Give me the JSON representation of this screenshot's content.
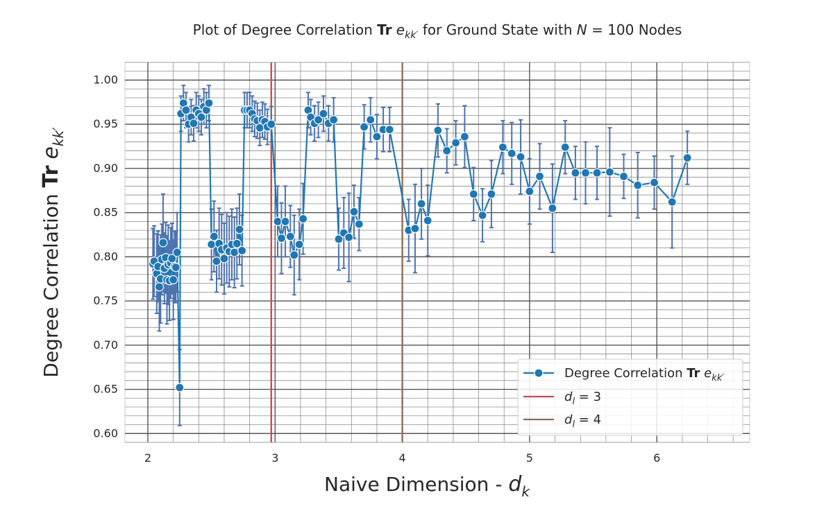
{
  "chart_data": {
    "type": "line",
    "title_parts": {
      "prefix": "Plot of Degree Correlation ",
      "bold": "Tr",
      "symbol": "e",
      "sub": "kk′",
      "mid": " for Ground State with ",
      "n_var": "N",
      "n_eq": " = 100 Nodes"
    },
    "xlabel_parts": {
      "text": "Naive Dimension - ",
      "var": "d",
      "sub": "k"
    },
    "ylabel_parts": {
      "text": "Degree Correlation ",
      "bold": "Tr",
      "var": "e",
      "sub": "kk′"
    },
    "xlim": [
      1.82,
      6.73
    ],
    "ylim": [
      0.59,
      1.02
    ],
    "x_ticks": [
      2,
      3,
      4,
      5,
      6
    ],
    "y_ticks": [
      0.6,
      0.65,
      0.7,
      0.75,
      0.8,
      0.85,
      0.9,
      0.95,
      1.0
    ],
    "x_minor_step": 0.2,
    "y_minor_step": 0.01,
    "grid": true,
    "legend_position": "lower right",
    "colors": {
      "series": "#1f77b4",
      "errorbar": "#4c72b0",
      "vline_3": "#c44e52",
      "vline_4": "#8c6d58"
    },
    "series": [
      {
        "name": "Degree Correlation Tr e_kk′",
        "legend_parts": {
          "text": "Degree Correlation ",
          "bold": "Tr",
          "var": "e",
          "sub": "kk′"
        },
        "points": [
          [
            2.04,
            0.792,
            0.04
          ],
          [
            2.05,
            0.795,
            0.04
          ],
          [
            2.07,
            0.781,
            0.045
          ],
          [
            2.08,
            0.789,
            0.04
          ],
          [
            2.09,
            0.766,
            0.05
          ],
          [
            2.1,
            0.775,
            0.05
          ],
          [
            2.11,
            0.797,
            0.04
          ],
          [
            2.12,
            0.816,
            0.055
          ],
          [
            2.13,
            0.787,
            0.04
          ],
          [
            2.14,
            0.799,
            0.04
          ],
          [
            2.15,
            0.774,
            0.05
          ],
          [
            2.16,
            0.791,
            0.045
          ],
          [
            2.17,
            0.773,
            0.045
          ],
          [
            2.18,
            0.793,
            0.04
          ],
          [
            2.19,
            0.798,
            0.04
          ],
          [
            2.2,
            0.774,
            0.045
          ],
          [
            2.21,
            0.789,
            0.04
          ],
          [
            2.22,
            0.788,
            0.04
          ],
          [
            2.23,
            0.805,
            0.045
          ],
          [
            2.25,
            0.652,
            0.043
          ],
          [
            2.26,
            0.962,
            0.02
          ],
          [
            2.28,
            0.974,
            0.02
          ],
          [
            2.3,
            0.966,
            0.02
          ],
          [
            2.32,
            0.95,
            0.02
          ],
          [
            2.34,
            0.958,
            0.02
          ],
          [
            2.36,
            0.951,
            0.02
          ],
          [
            2.38,
            0.966,
            0.02
          ],
          [
            2.4,
            0.962,
            0.02
          ],
          [
            2.42,
            0.958,
            0.02
          ],
          [
            2.44,
            0.97,
            0.02
          ],
          [
            2.46,
            0.966,
            0.02
          ],
          [
            2.48,
            0.974,
            0.02
          ],
          [
            2.5,
            0.814,
            0.04
          ],
          [
            2.52,
            0.823,
            0.04
          ],
          [
            2.54,
            0.795,
            0.035
          ],
          [
            2.56,
            0.815,
            0.04
          ],
          [
            2.58,
            0.808,
            0.04
          ],
          [
            2.6,
            0.798,
            0.04
          ],
          [
            2.62,
            0.81,
            0.04
          ],
          [
            2.64,
            0.806,
            0.04
          ],
          [
            2.66,
            0.814,
            0.04
          ],
          [
            2.68,
            0.805,
            0.04
          ],
          [
            2.7,
            0.815,
            0.04
          ],
          [
            2.72,
            0.831,
            0.04
          ],
          [
            2.74,
            0.807,
            0.04
          ],
          [
            2.76,
            0.966,
            0.02
          ],
          [
            2.78,
            0.966,
            0.02
          ],
          [
            2.8,
            0.966,
            0.02
          ],
          [
            2.82,
            0.962,
            0.02
          ],
          [
            2.84,
            0.956,
            0.02
          ],
          [
            2.86,
            0.954,
            0.02
          ],
          [
            2.88,
            0.946,
            0.02
          ],
          [
            2.9,
            0.955,
            0.02
          ],
          [
            2.92,
            0.953,
            0.02
          ],
          [
            2.94,
            0.947,
            0.02
          ],
          [
            2.97,
            0.95,
            0.02
          ],
          [
            3.02,
            0.84,
            0.04
          ],
          [
            3.05,
            0.821,
            0.04
          ],
          [
            3.08,
            0.84,
            0.04
          ],
          [
            3.12,
            0.823,
            0.035
          ],
          [
            3.15,
            0.802,
            0.045
          ],
          [
            3.19,
            0.814,
            0.04
          ],
          [
            3.22,
            0.843,
            0.04
          ],
          [
            3.26,
            0.966,
            0.02
          ],
          [
            3.28,
            0.958,
            0.02
          ],
          [
            3.31,
            0.951,
            0.02
          ],
          [
            3.34,
            0.955,
            0.02
          ],
          [
            3.38,
            0.962,
            0.02
          ],
          [
            3.42,
            0.951,
            0.02
          ],
          [
            3.46,
            0.955,
            0.025
          ],
          [
            3.5,
            0.82,
            0.035
          ],
          [
            3.54,
            0.827,
            0.04
          ],
          [
            3.58,
            0.822,
            0.05
          ],
          [
            3.62,
            0.851,
            0.03
          ],
          [
            3.66,
            0.837,
            0.03
          ],
          [
            3.7,
            0.947,
            0.025
          ],
          [
            3.75,
            0.955,
            0.025
          ],
          [
            3.8,
            0.936,
            0.025
          ],
          [
            3.85,
            0.944,
            0.025
          ],
          [
            3.9,
            0.944,
            0.025
          ],
          [
            4.05,
            0.83,
            0.035
          ],
          [
            4.1,
            0.832,
            0.05
          ],
          [
            4.15,
            0.86,
            0.04
          ],
          [
            4.2,
            0.841,
            0.04
          ],
          [
            4.28,
            0.943,
            0.03
          ],
          [
            4.35,
            0.92,
            0.025
          ],
          [
            4.42,
            0.929,
            0.025
          ],
          [
            4.49,
            0.936,
            0.035
          ],
          [
            4.56,
            0.871,
            0.03
          ],
          [
            4.63,
            0.847,
            0.03
          ],
          [
            4.7,
            0.871,
            0.038
          ],
          [
            4.79,
            0.924,
            0.03
          ],
          [
            4.86,
            0.917,
            0.035
          ],
          [
            4.93,
            0.913,
            0.042
          ],
          [
            5.0,
            0.874,
            0.037
          ],
          [
            5.08,
            0.891,
            0.037
          ],
          [
            5.18,
            0.855,
            0.05
          ],
          [
            5.28,
            0.924,
            0.03
          ],
          [
            5.36,
            0.895,
            0.03
          ],
          [
            5.44,
            0.895,
            0.035
          ],
          [
            5.53,
            0.895,
            0.03
          ],
          [
            5.63,
            0.896,
            0.05
          ],
          [
            5.74,
            0.891,
            0.025
          ],
          [
            5.85,
            0.881,
            0.037
          ],
          [
            5.98,
            0.884,
            0.03
          ],
          [
            6.12,
            0.862,
            0.052
          ],
          [
            6.24,
            0.912,
            0.03
          ]
        ]
      }
    ],
    "vlines": [
      {
        "x": 2.97,
        "label_var": "d",
        "label_sub": "l",
        "label_val": " = 3",
        "color_key": "vline_3"
      },
      {
        "x": 4.0,
        "label_var": "d",
        "label_sub": "l",
        "label_val": " = 4",
        "color_key": "vline_4"
      }
    ]
  }
}
